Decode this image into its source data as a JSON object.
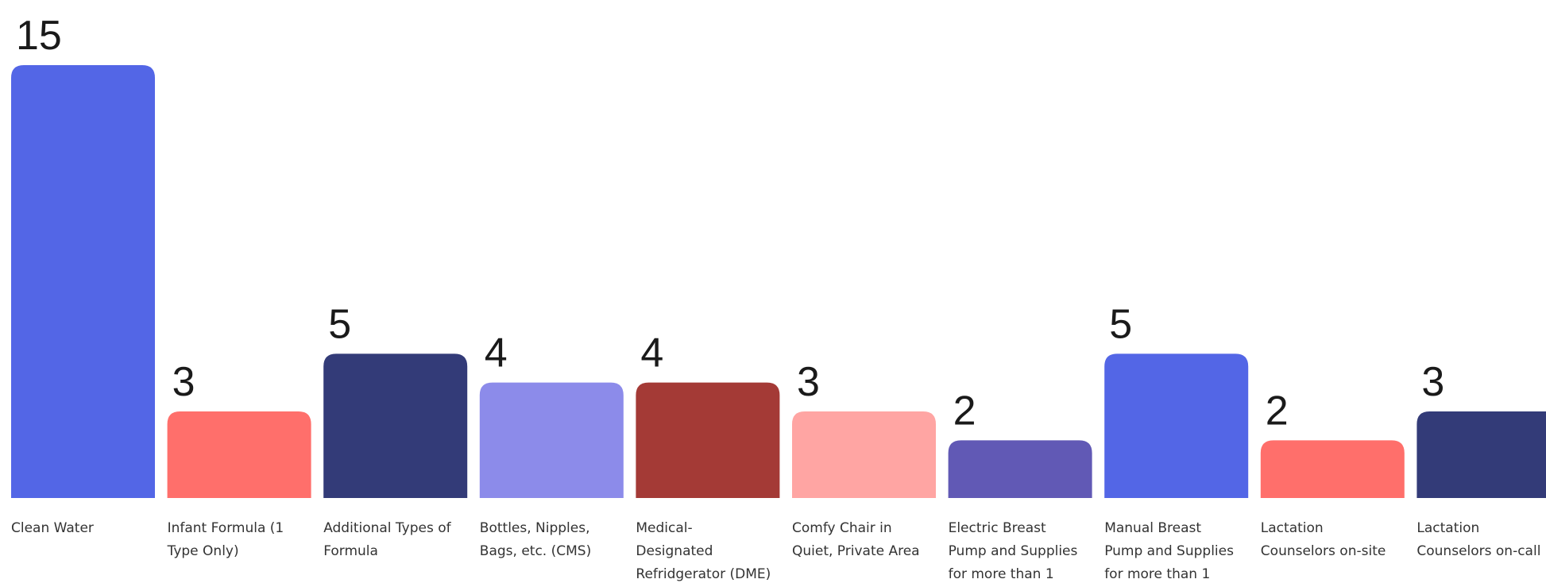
{
  "chart_data": {
    "type": "bar",
    "title": "",
    "xlabel": "",
    "ylabel": "",
    "ylim": [
      0,
      15
    ],
    "grid": false,
    "legend": "none",
    "categories": [
      "Clean Water",
      "Infant Formula (1 Type Only)",
      "Additional Types of Formula",
      "Bottles, Nipples, Bags, etc. (CMS)",
      "Medical-Designated Refridgerator (DME)",
      "Comfy Chair in Quiet, Private Area",
      "Electric Breast Pump and Supplies for more than 1",
      "Manual Breast Pump and Supplies for more than 1",
      "Lactation Counselors on-site",
      "Lactation Counselors on-call"
    ],
    "category_lines": [
      [
        "Clean Water"
      ],
      [
        "Infant Formula (1",
        "Type Only)"
      ],
      [
        "Additional Types of",
        "Formula"
      ],
      [
        "Bottles, Nipples,",
        "Bags, etc. (CMS)"
      ],
      [
        "Medical-",
        "Designated",
        "Refridgerator (DME)"
      ],
      [
        "Comfy Chair in",
        "Quiet, Private Area"
      ],
      [
        "Electric Breast",
        "Pump and Supplies",
        "for more than 1"
      ],
      [
        "Manual Breast",
        "Pump and Supplies",
        "for more than 1"
      ],
      [
        "Lactation",
        "Counselors on-site"
      ],
      [
        "Lactation",
        "Counselors on-call"
      ]
    ],
    "values": [
      15,
      3,
      5,
      4,
      4,
      3,
      2,
      5,
      2,
      3
    ],
    "value_labels": [
      "15",
      "3",
      "5",
      "4",
      "4",
      "3",
      "2",
      "5",
      "2",
      "3"
    ],
    "colors": [
      "#5366E6",
      "#FF6F6B",
      "#333B78",
      "#8C8BEA",
      "#A43A36",
      "#FFA5A3",
      "#6159B5",
      "#5366E6",
      "#FF6F6B",
      "#333B78"
    ]
  }
}
